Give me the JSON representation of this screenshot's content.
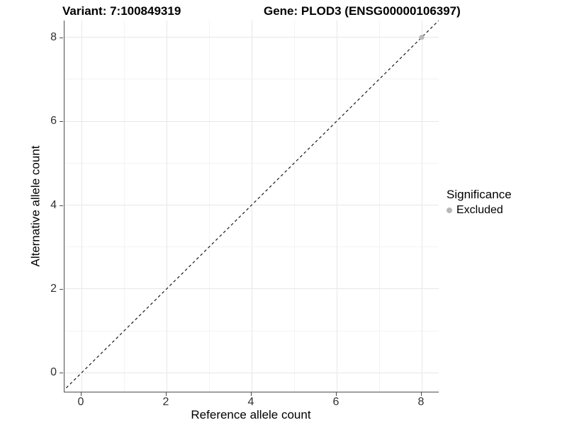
{
  "title": {
    "variant": "Variant: 7:100849319",
    "gene": "Gene: PLOD3 (ENSG00000106397)"
  },
  "chart_data": {
    "type": "scatter",
    "title": "Variant: 7:100849319 / Gene: PLOD3 (ENSG00000106397)",
    "xlabel": "Reference allele count",
    "ylabel": "Alternative allele count",
    "x_ticks": [
      0,
      2,
      4,
      6,
      8
    ],
    "y_ticks": [
      0,
      2,
      4,
      6,
      8
    ],
    "x_minor_ticks": [
      1,
      3,
      5,
      7
    ],
    "y_minor_ticks": [
      1,
      3,
      5,
      7
    ],
    "xlim": [
      -0.4,
      8.4
    ],
    "ylim": [
      -0.45,
      8.4
    ],
    "grid": true,
    "legend_position": "right",
    "identity_line": {
      "style": "dashed",
      "from": [
        -0.45,
        -0.45
      ],
      "to": [
        8.45,
        8.45
      ],
      "color": "#1a1a1a"
    },
    "series": [
      {
        "name": "Excluded",
        "color": "#b8b8b8",
        "points": [
          {
            "x": 8,
            "y": 8
          }
        ]
      }
    ],
    "legend": {
      "title": "Significance",
      "items": [
        {
          "label": "Excluded",
          "color": "#b8b8b8"
        }
      ]
    }
  },
  "colors": {
    "axis_line": "#4d4d4d",
    "grid_major": "#e7e7e7",
    "grid_minor": "#f3f3f3",
    "point_gray": "#b8b8b8",
    "text": "#000000"
  }
}
